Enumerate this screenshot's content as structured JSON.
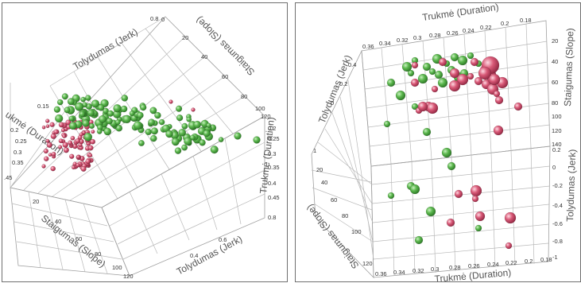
{
  "colors": {
    "green": "#3f9c38",
    "green_light": "#9bd88f",
    "pink": "#c8405e",
    "pink_light": "#f2a6b6",
    "grid": "#b9b9b9"
  },
  "chart_data": [
    {
      "type": "scatter",
      "title": "",
      "axes": {
        "slope_label": "Staigumas (Slope)",
        "jerk_label": "Tolydumas (Jerk)",
        "duration_label": "Trukmė (Duration)",
        "duration_label_cut": "ukmė (Duration)"
      },
      "ticks": {
        "slope_front": [
          "20",
          "40",
          "60",
          "80",
          "100",
          "120"
        ],
        "slope_back": [
          "20",
          "40",
          "60",
          "80",
          "100",
          "120"
        ],
        "jerk_front": [
          "0.4",
          "0.6",
          "0.8"
        ],
        "jerk_back": [
          "0.8",
          "0"
        ],
        "duration_left": [
          "0.15",
          "0.2",
          "0.25",
          "0.3",
          "0.35",
          ".45"
        ],
        "duration_right": [
          "0.2",
          "0.25",
          "0.3",
          "0.35",
          "0.4",
          "0.45"
        ]
      },
      "series": [
        {
          "color": "pink",
          "count": 90,
          "approx_region": "Duration 0.2–0.35, Slope 20–45, Jerk low"
        },
        {
          "color": "green",
          "count": 130,
          "approx_region": "Duration 0.2–0.3, Slope 30–90, Jerk 0.2–0.6"
        }
      ]
    },
    {
      "type": "scatter",
      "title": "",
      "axes": {
        "slope_label": "Staigumas (Slope)",
        "jerk_label": "Tolydumas (Jerk)",
        "duration_label": "Trukmė (Duration)"
      },
      "ticks": {
        "duration_top": [
          "0.36",
          "0.34",
          "0.32",
          "0.3",
          "0.28",
          "0.26",
          "0.24",
          "0.22",
          "0.2",
          "0.18"
        ],
        "duration_bottom": [
          "0.36",
          "0.34",
          "0.32",
          "0.3",
          "0.28",
          "0.26",
          "0.24",
          "0.22",
          "0.2",
          "0.18"
        ],
        "slope_right": [
          "20",
          "40",
          "60",
          "80",
          "100",
          "120",
          "140"
        ],
        "slope_left": [
          "20",
          "40",
          "60",
          "80",
          "100",
          "120"
        ],
        "jerk_right": [
          "0.2",
          "0",
          "-0.2",
          "-0.4",
          "-0.6",
          "-0.8",
          "-1"
        ],
        "jerk_left": [
          "0.4",
          "0.2",
          "0"
        ],
        "jerk_left_extra": [
          "1"
        ]
      },
      "series": [
        {
          "color": "pink",
          "count": 32,
          "approx_region": "Duration 0.2–0.26, Slope 30–130"
        },
        {
          "color": "green",
          "count": 30,
          "approx_region": "Duration 0.24–0.34, Slope 20–140"
        }
      ]
    }
  ]
}
